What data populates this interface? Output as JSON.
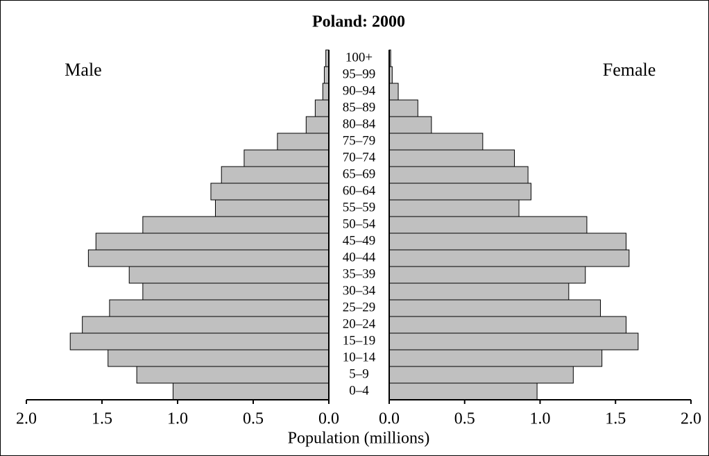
{
  "chart_data": {
    "type": "pyramid",
    "title": "Poland: 2000",
    "x_label": "Population (millions)",
    "categories": [
      "0–4",
      "5–9",
      "10–14",
      "15–19",
      "20–24",
      "25–29",
      "30–34",
      "35–39",
      "40–44",
      "45–49",
      "50–54",
      "55–59",
      "60–64",
      "65–69",
      "70–74",
      "75–79",
      "80–84",
      "85–89",
      "90–94",
      "95–99",
      "100+"
    ],
    "series": [
      {
        "name": "Male",
        "color": "#c0c0c0",
        "values": [
          1.03,
          1.27,
          1.46,
          1.71,
          1.63,
          1.45,
          1.23,
          1.32,
          1.59,
          1.54,
          1.23,
          0.75,
          0.78,
          0.71,
          0.56,
          0.34,
          0.15,
          0.09,
          0.04,
          0.03,
          0.02
        ]
      },
      {
        "name": "Female",
        "color": "#c0c0c0",
        "values": [
          0.98,
          1.22,
          1.41,
          1.65,
          1.57,
          1.4,
          1.19,
          1.3,
          1.59,
          1.57,
          1.31,
          0.86,
          0.94,
          0.92,
          0.83,
          0.62,
          0.28,
          0.19,
          0.06,
          0.02,
          0.01
        ]
      }
    ],
    "xlim": [
      0,
      2
    ],
    "xticks": [
      {
        "value": 0,
        "label": "0.0"
      },
      {
        "value": 0.5,
        "label": "0.5"
      },
      {
        "value": 1,
        "label": "1.0"
      },
      {
        "value": 1.5,
        "label": "1.5"
      },
      {
        "value": 2,
        "label": "2.0"
      }
    ]
  }
}
